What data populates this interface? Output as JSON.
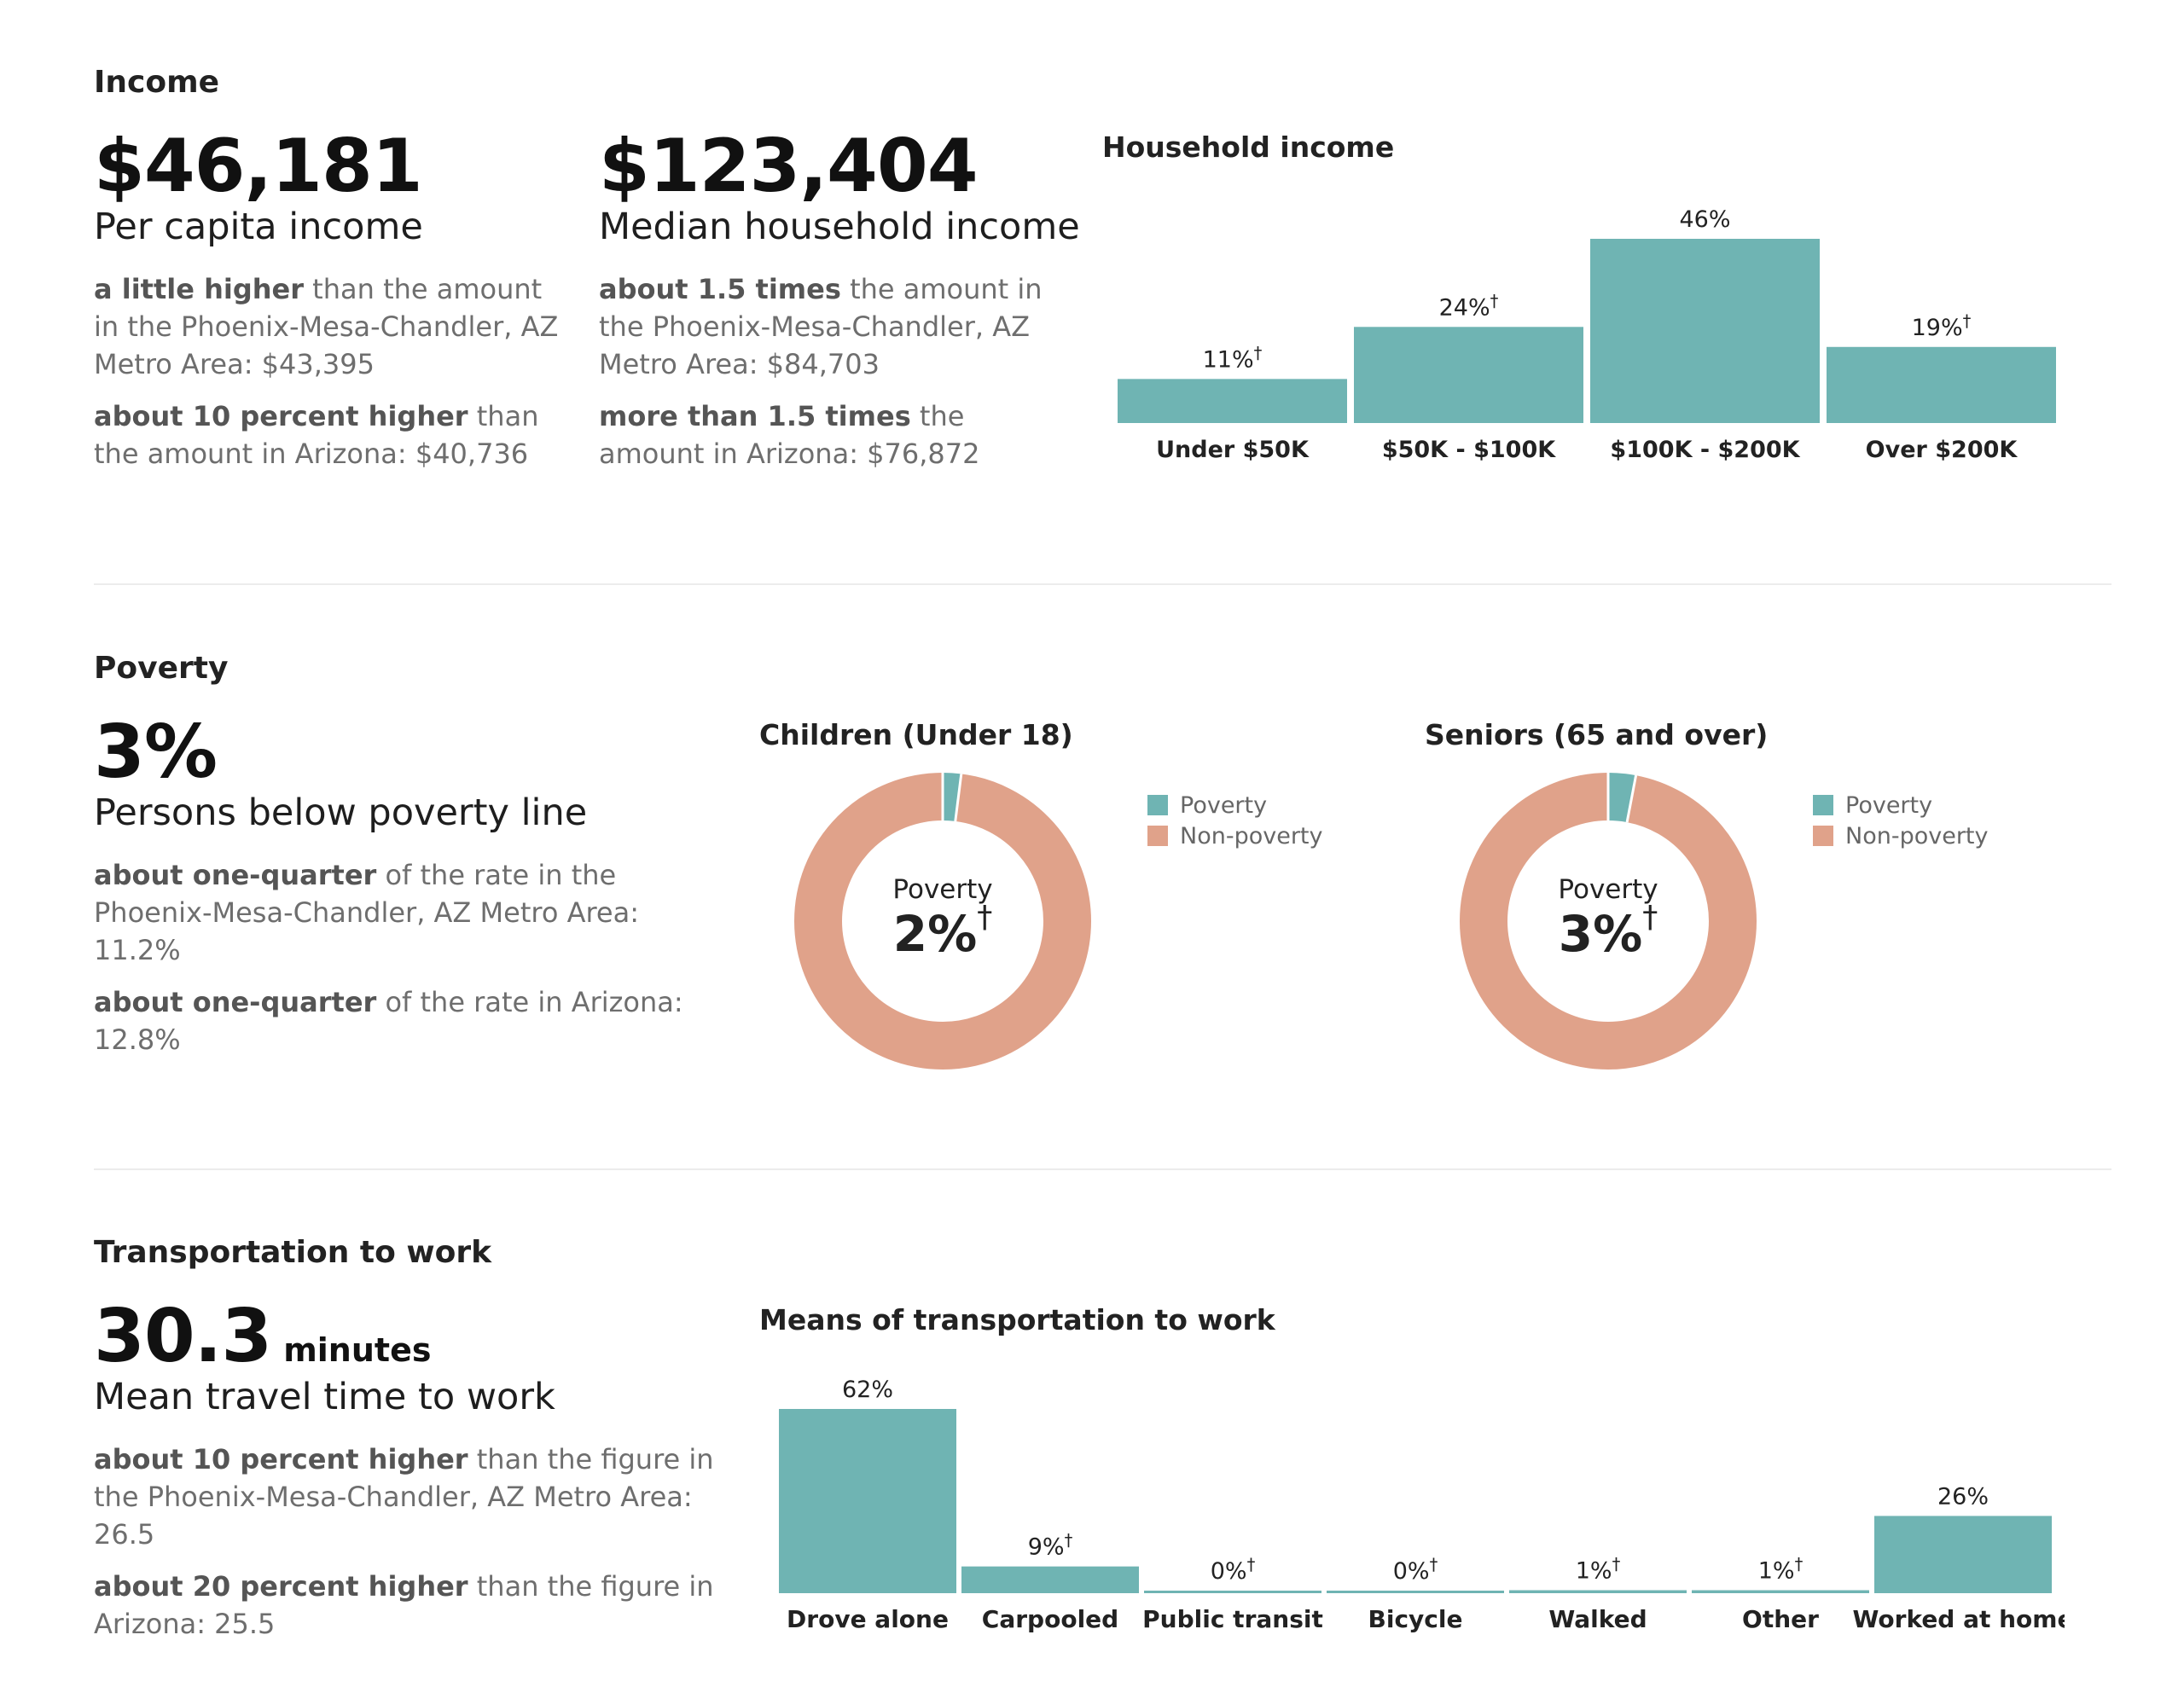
{
  "colors": {
    "teal": "#6fb4b3",
    "salmon": "#e0a28a"
  },
  "income": {
    "title": "Income",
    "per_capita": {
      "value": "$46,181",
      "label": "Per capita income",
      "comp1_bold": "a little higher",
      "comp1_text": " than the amount in the Phoenix-Mesa-Chandler, AZ Metro Area: $43,395",
      "comp2_bold": "about 10 percent higher",
      "comp2_text": " than the amount in Arizona: $40,736"
    },
    "median_household": {
      "value": "$123,404",
      "label": "Median household income",
      "comp1_bold": "about 1.5 times",
      "comp1_text": " the amount in the Phoenix-Mesa-Chandler, AZ Metro Area: $84,703",
      "comp2_bold": "more than 1.5 times",
      "comp2_text": " the amount in Arizona: $76,872"
    }
  },
  "poverty": {
    "title": "Poverty",
    "value": "3%",
    "label": "Persons below poverty line",
    "comp1_bold": "about one-quarter",
    "comp1_text": " of the rate in the Phoenix-Mesa-Chandler, AZ Metro Area: 11.2%",
    "comp2_bold": "about one-quarter",
    "comp2_text": " of the rate in Arizona: 12.8%"
  },
  "transport": {
    "title": "Transportation to work",
    "value": "30.3",
    "unit": "minutes",
    "label": "Mean travel time to work",
    "comp1_bold": "about 10 percent higher",
    "comp1_text": " than the figure in the Phoenix-Mesa-Chandler, AZ Metro Area: 26.5",
    "comp2_bold": "about 20 percent higher",
    "comp2_text": " than the figure in Arizona: 25.5"
  },
  "chart_data": [
    {
      "id": "household-income",
      "type": "bar",
      "title": "Household income",
      "categories": [
        "Under $50K",
        "$50K - $100K",
        "$100K - $200K",
        "Over $200K"
      ],
      "values": [
        11,
        24,
        46,
        19
      ],
      "labels": [
        "11%",
        "24%",
        "46%",
        "19%"
      ],
      "dagger": [
        true,
        true,
        false,
        true
      ],
      "ylim": [
        0,
        46
      ]
    },
    {
      "id": "children-poverty",
      "type": "pie",
      "title": "Children (Under 18)",
      "categories": [
        "Poverty",
        "Non-poverty"
      ],
      "values": [
        2,
        98
      ],
      "center_label": "Poverty",
      "center_value": "2%",
      "dagger": true
    },
    {
      "id": "seniors-poverty",
      "type": "pie",
      "title": "Seniors (65 and over)",
      "categories": [
        "Poverty",
        "Non-poverty"
      ],
      "values": [
        3,
        97
      ],
      "center_label": "Poverty",
      "center_value": "3%",
      "dagger": true
    },
    {
      "id": "transport-means",
      "type": "bar",
      "title": "Means of transportation to work",
      "categories": [
        "Drove alone",
        "Carpooled",
        "Public transit",
        "Bicycle",
        "Walked",
        "Other",
        "Worked at home"
      ],
      "values": [
        62,
        9,
        0,
        0,
        1,
        1,
        26
      ],
      "labels": [
        "62%",
        "9%",
        "0%",
        "0%",
        "1%",
        "1%",
        "26%"
      ],
      "dagger": [
        false,
        true,
        true,
        true,
        true,
        true,
        false
      ],
      "ylim": [
        0,
        62
      ]
    }
  ]
}
